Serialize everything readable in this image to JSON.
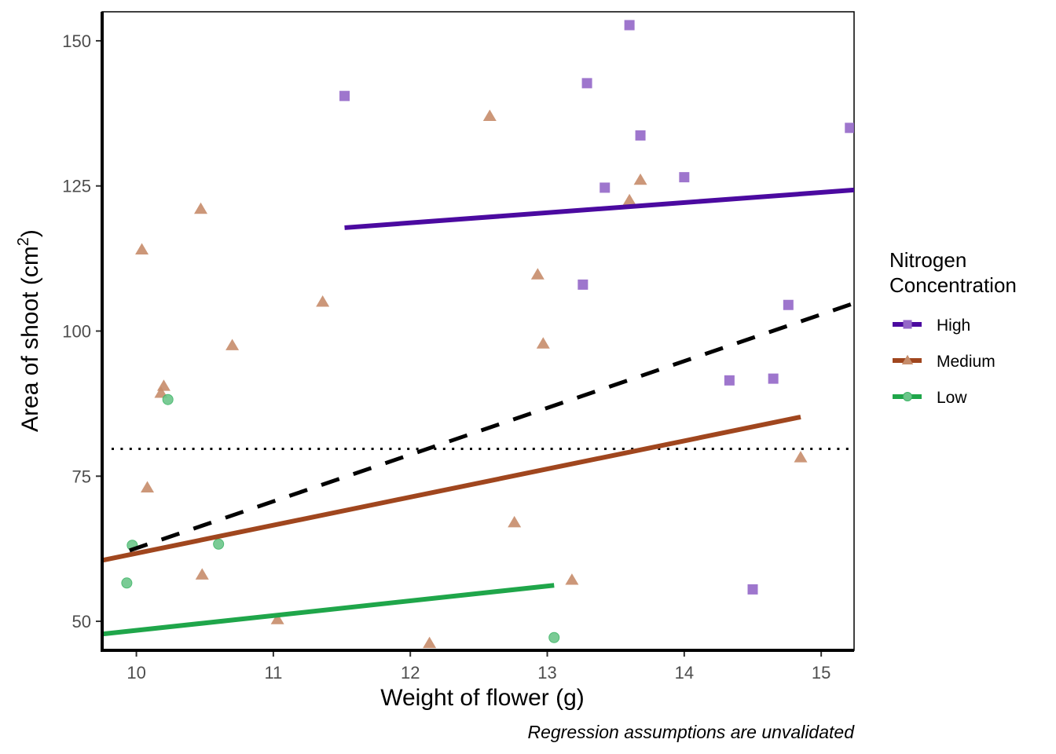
{
  "chart_data": {
    "type": "scatter",
    "title": "",
    "xlabel": "Weight of flower (g)",
    "ylabel_main": "Area of shoot (cm",
    "ylabel_sup": "2",
    "ylabel_close": ")",
    "caption": "Regression assumptions are unvalidated",
    "xlim": [
      9.75,
      15.24
    ],
    "ylim": [
      45.0,
      155.0
    ],
    "x_ticks": [
      10,
      11,
      12,
      13,
      14,
      15
    ],
    "y_ticks": [
      50,
      75,
      100,
      125,
      150
    ],
    "grid": false,
    "legend": {
      "title_line1": "Nitrogen",
      "title_line2": "Concentration",
      "placement": "right"
    },
    "reference_line": {
      "type": "horizontal",
      "y": 79.7,
      "style": "dotted",
      "color": "#000000"
    },
    "overall_fit": {
      "style": "dashed",
      "color": "#000000",
      "x": [
        9.95,
        15.24
      ],
      "y": [
        62.2,
        104.8
      ]
    },
    "series": [
      {
        "name": "High",
        "shape": "square",
        "line_color": "#4B0AA0",
        "point_color": "#9467C8",
        "fit": {
          "x": [
            11.52,
            15.24
          ],
          "y": [
            117.8,
            124.3
          ]
        },
        "points": [
          [
            11.52,
            140.5
          ],
          [
            13.29,
            142.7
          ],
          [
            13.6,
            152.7
          ],
          [
            13.68,
            133.7
          ],
          [
            13.42,
            124.7
          ],
          [
            14.0,
            126.5
          ],
          [
            15.21,
            135.0
          ],
          [
            13.26,
            108.0
          ],
          [
            14.76,
            104.5
          ],
          [
            14.33,
            91.5
          ],
          [
            14.65,
            91.8
          ],
          [
            14.5,
            55.5
          ]
        ]
      },
      {
        "name": "Medium",
        "shape": "triangle",
        "line_color": "#A0461E",
        "point_color": "#C68C6A",
        "fit": {
          "x": [
            9.75,
            14.85
          ],
          "y": [
            60.5,
            85.2
          ]
        },
        "points": [
          [
            10.04,
            114.0
          ],
          [
            10.47,
            121.0
          ],
          [
            10.08,
            73.0
          ],
          [
            10.18,
            89.3
          ],
          [
            10.2,
            90.5
          ],
          [
            10.48,
            58.0
          ],
          [
            10.7,
            97.5
          ],
          [
            11.36,
            105.0
          ],
          [
            11.03,
            50.3
          ],
          [
            12.14,
            46.2
          ],
          [
            12.58,
            137.0
          ],
          [
            12.93,
            109.7
          ],
          [
            12.97,
            97.8
          ],
          [
            12.76,
            67.0
          ],
          [
            13.18,
            57.1
          ],
          [
            13.6,
            122.5
          ],
          [
            13.68,
            126.0
          ],
          [
            14.85,
            78.2
          ]
        ]
      },
      {
        "name": "Low",
        "shape": "circle",
        "line_color": "#1FA64A",
        "point_color": "#6CC68A",
        "fit": {
          "x": [
            9.75,
            13.05
          ],
          "y": [
            47.8,
            56.2
          ]
        },
        "points": [
          [
            10.23,
            88.2
          ],
          [
            9.97,
            63.1
          ],
          [
            9.93,
            56.6
          ],
          [
            10.6,
            63.3
          ],
          [
            13.05,
            47.2
          ]
        ]
      }
    ]
  }
}
